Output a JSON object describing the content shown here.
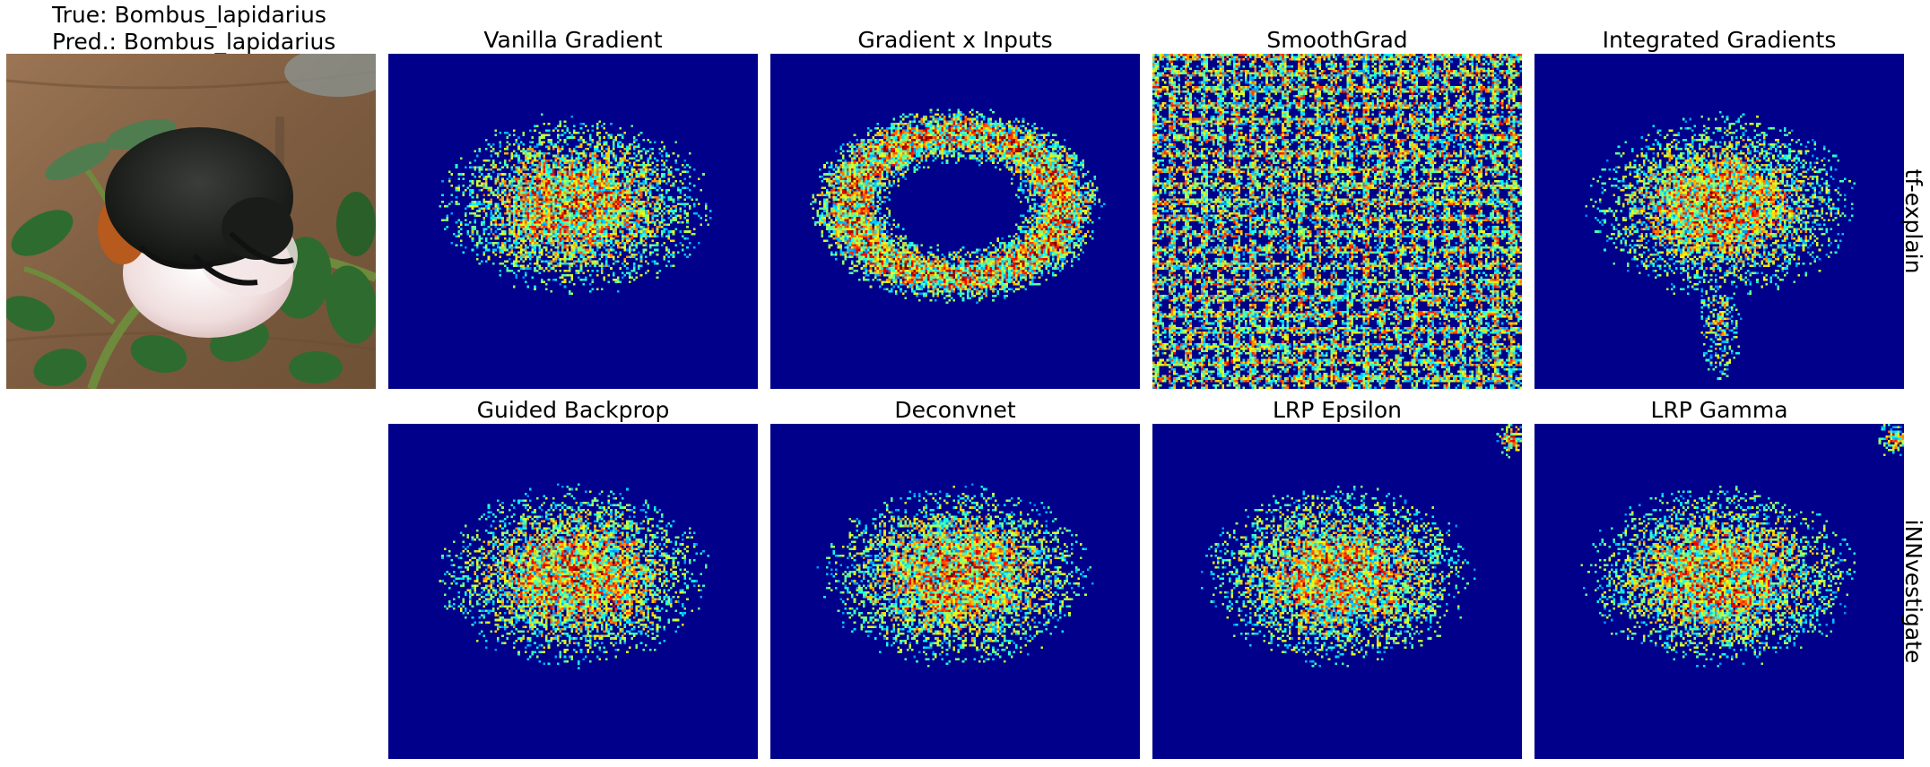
{
  "header": {
    "true_label": "True: Bombus_lapidarius",
    "pred_label": "Pred.: Bombus_lapidarius"
  },
  "rows": [
    {
      "library": "tf-explain",
      "methods": [
        "Vanilla Gradient",
        "Gradient x Inputs",
        "SmoothGrad",
        "Integrated Gradients"
      ]
    },
    {
      "library": "iNNvestigate",
      "methods": [
        "Guided Backprop",
        "Deconvnet",
        "LRP Epsilon",
        "LRP Gamma"
      ]
    }
  ],
  "colormap": "jet",
  "colors": {
    "background": "#00008b",
    "photo_wood": "#8a6a4a",
    "bee_body": "#1c1f1c",
    "bee_orange": "#b65a1e",
    "flower": "#efe6e6",
    "leaf": "#2e6b2e"
  }
}
